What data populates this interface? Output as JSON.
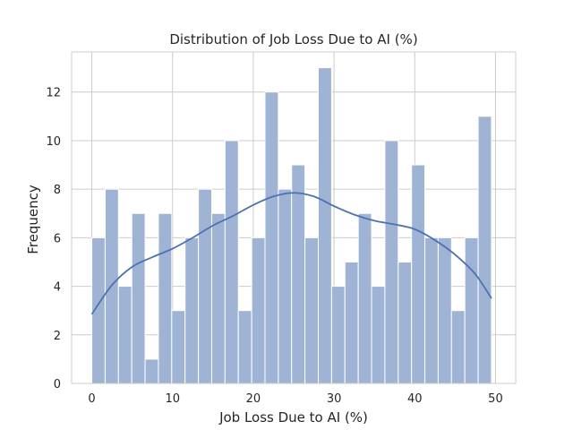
{
  "chart_data": {
    "type": "bar",
    "title": "Distribution of Job Loss Due to AI (%)",
    "xlabel": "Job Loss Due to AI (%)",
    "ylabel": "Frequency",
    "xlim": [
      -2.5,
      52.5
    ],
    "ylim": [
      0,
      13.65
    ],
    "x_ticks": [
      0,
      10,
      20,
      30,
      40,
      50
    ],
    "y_ticks": [
      0,
      2,
      4,
      6,
      8,
      10,
      12
    ],
    "grid": true,
    "legend": "none",
    "bar_color": "#9fb4d4",
    "kde_color": "#4c72b0",
    "bins": [
      {
        "x0": 0.0,
        "x1": 1.65,
        "count": 6
      },
      {
        "x0": 1.65,
        "x1": 3.3,
        "count": 8
      },
      {
        "x0": 3.3,
        "x1": 4.95,
        "count": 4
      },
      {
        "x0": 4.95,
        "x1": 6.6,
        "count": 7
      },
      {
        "x0": 6.6,
        "x1": 8.25,
        "count": 1
      },
      {
        "x0": 8.25,
        "x1": 9.9,
        "count": 7
      },
      {
        "x0": 9.9,
        "x1": 11.55,
        "count": 3
      },
      {
        "x0": 11.55,
        "x1": 13.2,
        "count": 6
      },
      {
        "x0": 13.2,
        "x1": 14.85,
        "count": 8
      },
      {
        "x0": 14.85,
        "x1": 16.5,
        "count": 7
      },
      {
        "x0": 16.5,
        "x1": 18.15,
        "count": 10
      },
      {
        "x0": 18.15,
        "x1": 19.8,
        "count": 3
      },
      {
        "x0": 19.8,
        "x1": 21.45,
        "count": 6
      },
      {
        "x0": 21.45,
        "x1": 23.1,
        "count": 12
      },
      {
        "x0": 23.1,
        "x1": 24.75,
        "count": 8
      },
      {
        "x0": 24.75,
        "x1": 26.4,
        "count": 9
      },
      {
        "x0": 26.4,
        "x1": 28.05,
        "count": 6
      },
      {
        "x0": 28.05,
        "x1": 29.7,
        "count": 13
      },
      {
        "x0": 29.7,
        "x1": 31.35,
        "count": 4
      },
      {
        "x0": 31.35,
        "x1": 33.0,
        "count": 5
      },
      {
        "x0": 33.0,
        "x1": 34.65,
        "count": 7
      },
      {
        "x0": 34.65,
        "x1": 36.3,
        "count": 4
      },
      {
        "x0": 36.3,
        "x1": 37.95,
        "count": 10
      },
      {
        "x0": 37.95,
        "x1": 39.6,
        "count": 5
      },
      {
        "x0": 39.6,
        "x1": 41.25,
        "count": 9
      },
      {
        "x0": 41.25,
        "x1": 42.9,
        "count": 6
      },
      {
        "x0": 42.9,
        "x1": 44.55,
        "count": 6
      },
      {
        "x0": 44.55,
        "x1": 46.2,
        "count": 3
      },
      {
        "x0": 46.2,
        "x1": 47.85,
        "count": 6
      },
      {
        "x0": 47.85,
        "x1": 49.5,
        "count": 11
      }
    ],
    "kde": {
      "x": [
        0,
        2.5,
        5,
        7.5,
        10,
        12.5,
        15,
        17.5,
        20,
        22.5,
        25,
        27.5,
        30,
        32.5,
        35,
        37.5,
        40,
        42.5,
        45,
        47.5,
        49.5
      ],
      "y": [
        2.85,
        4.05,
        4.8,
        5.2,
        5.55,
        6.0,
        6.5,
        6.9,
        7.35,
        7.7,
        7.85,
        7.7,
        7.3,
        6.95,
        6.7,
        6.55,
        6.35,
        5.9,
        5.3,
        4.5,
        3.5
      ]
    }
  }
}
